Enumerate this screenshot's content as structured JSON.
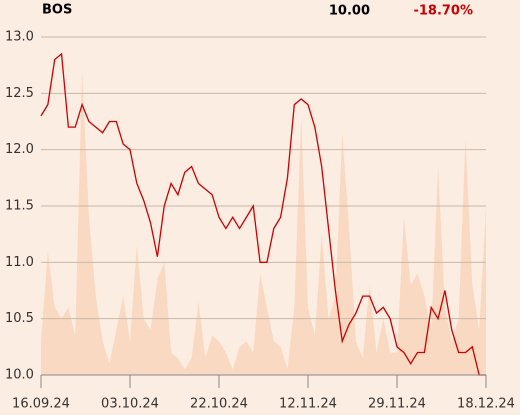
{
  "chart_data": {
    "type": "line",
    "title": "BOS",
    "price_label": "10.00",
    "change_label": "-18.70%",
    "categories": [
      "16.09.24",
      null,
      null,
      null,
      null,
      null,
      null,
      null,
      null,
      null,
      null,
      null,
      null,
      "03.10.24",
      null,
      null,
      null,
      null,
      null,
      null,
      null,
      null,
      null,
      null,
      null,
      null,
      "22.10.24",
      null,
      null,
      null,
      null,
      null,
      null,
      null,
      null,
      null,
      null,
      null,
      null,
      "12.11.24",
      null,
      null,
      null,
      null,
      null,
      null,
      null,
      null,
      null,
      null,
      null,
      null,
      "29.11.24",
      null,
      null,
      null,
      null,
      null,
      null,
      null,
      null,
      null,
      null,
      null,
      null,
      "18.12.24"
    ],
    "series": [
      {
        "kind": "area",
        "color": "#f9d9c2",
        "values": [
          10.3,
          11.1,
          10.6,
          10.5,
          10.6,
          10.35,
          12.7,
          11.4,
          10.7,
          10.3,
          10.1,
          10.4,
          10.7,
          10.3,
          11.15,
          10.5,
          10.4,
          10.85,
          11.0,
          10.2,
          10.15,
          10.05,
          10.15,
          10.65,
          10.15,
          10.35,
          10.3,
          10.2,
          10.05,
          10.25,
          10.3,
          10.2,
          10.9,
          10.6,
          10.3,
          10.25,
          10.05,
          10.6,
          12.3,
          10.6,
          10.35,
          11.25,
          10.5,
          10.7,
          12.15,
          11.3,
          10.3,
          10.15,
          10.8,
          10.2,
          10.5,
          10.2,
          10.2,
          11.4,
          10.8,
          10.9,
          10.7,
          10.4,
          11.85,
          10.6,
          10.3,
          10.5,
          12.1,
          10.8,
          10.4,
          11.5
        ]
      },
      {
        "kind": "line",
        "color": "#cc0000",
        "values": [
          12.3,
          12.4,
          12.8,
          12.85,
          12.2,
          12.2,
          12.4,
          12.25,
          12.2,
          12.15,
          12.25,
          12.25,
          12.05,
          12.0,
          11.7,
          11.55,
          11.35,
          11.05,
          11.5,
          11.7,
          11.6,
          11.8,
          11.85,
          11.7,
          11.65,
          11.6,
          11.4,
          11.3,
          11.4,
          11.3,
          11.4,
          11.5,
          11.0,
          11.0,
          11.3,
          11.4,
          11.75,
          12.4,
          12.45,
          12.4,
          12.2,
          11.85,
          11.3,
          10.75,
          10.3,
          10.45,
          10.55,
          10.7,
          10.7,
          10.55,
          10.6,
          10.5,
          10.25,
          10.2,
          10.1,
          10.2,
          10.2,
          10.6,
          10.5,
          10.75,
          10.4,
          10.2,
          10.2,
          10.25,
          10.0,
          10.0
        ]
      }
    ],
    "ylim": [
      10.0,
      13.0
    ],
    "yticks": [
      {
        "value": 10,
        "label": "10.0"
      },
      {
        "value": 10.5,
        "label": "10.5"
      },
      {
        "value": 11,
        "label": "11.0"
      },
      {
        "value": 11.5,
        "label": "11.5"
      },
      {
        "value": 12,
        "label": "12.0"
      },
      {
        "value": 12.5,
        "label": "12.5"
      },
      {
        "value": 13,
        "label": "13.0"
      }
    ],
    "grid": true
  }
}
